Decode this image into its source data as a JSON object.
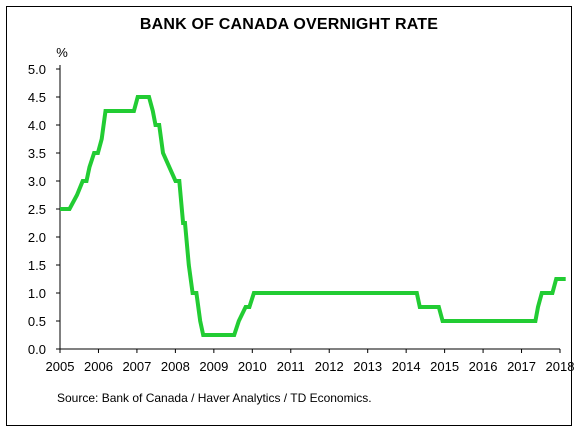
{
  "chart_data": {
    "type": "line",
    "title": "BANK OF CANADA OVERNIGHT RATE",
    "ylabel": "%",
    "xlabel": "",
    "xlim": [
      2005,
      2018.2
    ],
    "ylim": [
      0,
      5
    ],
    "y_ticks": [
      "0.0",
      "0.5",
      "1.0",
      "1.5",
      "2.0",
      "2.5",
      "3.0",
      "3.5",
      "4.0",
      "4.5",
      "5.0"
    ],
    "x_ticks": [
      "2005",
      "2006",
      "2007",
      "2008",
      "2009",
      "2010",
      "2011",
      "2012",
      "2013",
      "2014",
      "2015",
      "2016",
      "2017",
      "2018"
    ],
    "grid": false,
    "legend": "none",
    "series": [
      {
        "color": "#22cc33",
        "x": [
          2005.0,
          2005.25,
          2005.45,
          2005.6,
          2005.7,
          2005.78,
          2005.9,
          2006.0,
          2006.1,
          2006.2,
          2006.95,
          2007.05,
          2007.35,
          2007.45,
          2007.52,
          2007.62,
          2007.72,
          2008.05,
          2008.1,
          2008.15,
          2008.25,
          2008.3,
          2008.4,
          2008.5,
          2008.6,
          2008.7,
          2008.78,
          2009.6,
          2009.72,
          2009.9,
          2010.0,
          2010.12,
          2014.42,
          2014.5,
          2015.0,
          2015.1,
          2017.55,
          2017.62,
          2017.72,
          2018.0,
          2018.1,
          2018.35
        ],
        "y": [
          2.5,
          2.5,
          2.75,
          3.0,
          3.0,
          3.25,
          3.5,
          3.5,
          3.75,
          4.25,
          4.25,
          4.5,
          4.5,
          4.25,
          4.0,
          4.0,
          3.5,
          3.0,
          3.0,
          3.0,
          2.25,
          2.25,
          1.5,
          1.0,
          1.0,
          0.5,
          0.25,
          0.25,
          0.5,
          0.75,
          0.75,
          1.0,
          1.0,
          0.75,
          0.75,
          0.5,
          0.5,
          0.75,
          1.0,
          1.0,
          1.25,
          1.25
        ]
      }
    ]
  },
  "source": "Source: Bank of Canada / Haver Analytics / TD Economics."
}
